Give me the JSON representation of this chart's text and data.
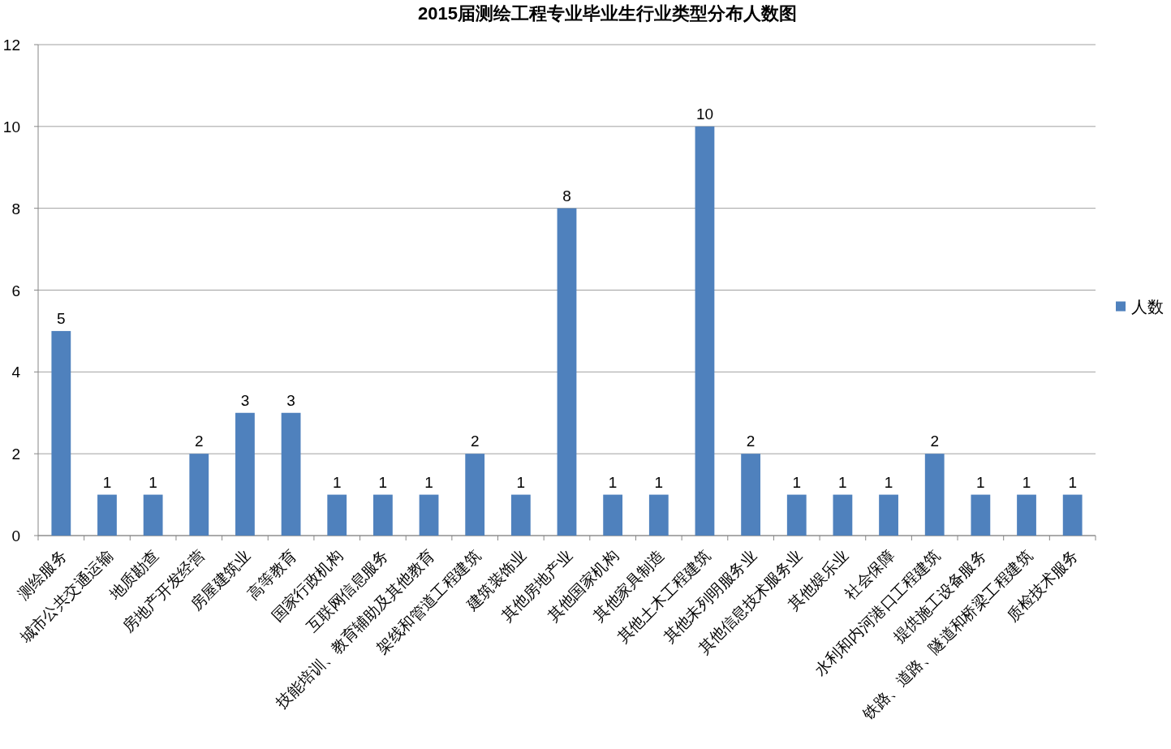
{
  "chart_data": {
    "type": "bar",
    "title": "2015届测绘工程专业毕业生行业类型分布人数图",
    "categories": [
      "测绘服务",
      "城市公共交通运输",
      "地质勘查",
      "房地产开发经营",
      "房屋建筑业",
      "高等教育",
      "国家行政机构",
      "互联网信息服务",
      "技能培训、教育辅助及其他教育",
      "架线和管道工程建筑",
      "建筑装饰业",
      "其他房地产业",
      "其他国家机构",
      "其他家具制造",
      "其他土木工程建筑",
      "其他未列明服务业",
      "其他信息技术服务业",
      "其他娱乐业",
      "社会保障",
      "水利和内河港口工程建筑",
      "提供施工设备服务",
      "铁路、道路、隧道和桥梁工程建筑",
      "质检技术服务"
    ],
    "series": [
      {
        "name": "人数",
        "color": "#4f81bd",
        "values": [
          5,
          1,
          1,
          2,
          3,
          3,
          1,
          1,
          1,
          2,
          1,
          8,
          1,
          1,
          10,
          2,
          1,
          1,
          1,
          2,
          1,
          1,
          1
        ]
      }
    ],
    "ylim": [
      0,
      12
    ],
    "yticks": [
      0,
      2,
      4,
      6,
      8,
      10,
      12
    ],
    "grid": "y",
    "legend": "right",
    "data_labels": true
  }
}
